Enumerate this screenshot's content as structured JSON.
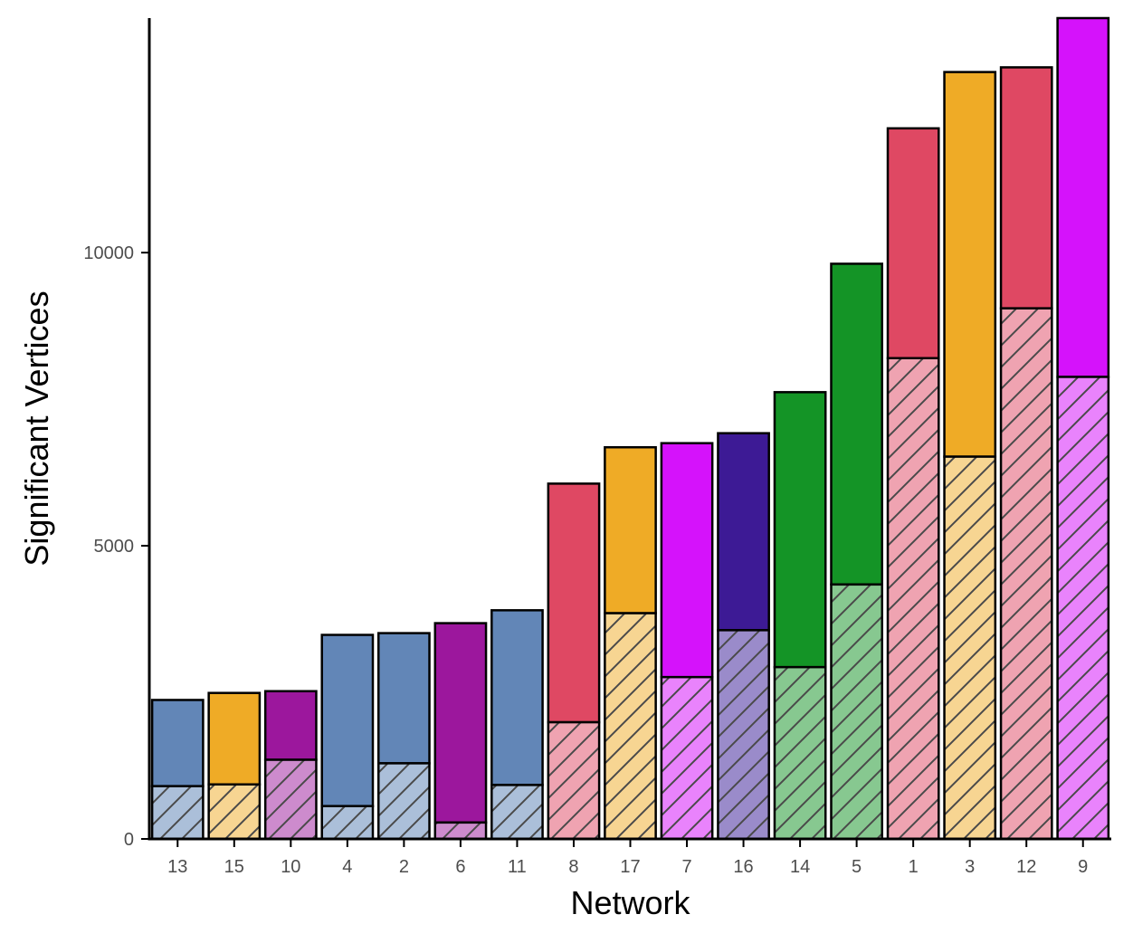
{
  "chart_data": {
    "type": "bar",
    "stacked": true,
    "title": "",
    "xlabel": "Network",
    "ylabel": "Significant Vertices",
    "ylim": [
      0,
      14000
    ],
    "yticks": [
      0,
      5000,
      10000
    ],
    "grid": false,
    "legend": "none",
    "categories": [
      "13",
      "15",
      "10",
      "4",
      "2",
      "6",
      "11",
      "8",
      "17",
      "7",
      "16",
      "14",
      "5",
      "1",
      "3",
      "12",
      "9"
    ],
    "totals": [
      2370,
      2490,
      2520,
      3480,
      3510,
      3680,
      3900,
      6060,
      6680,
      6750,
      6920,
      7620,
      9810,
      12120,
      13080,
      13160,
      14000
    ],
    "hatched_values": [
      900,
      930,
      1350,
      560,
      1290,
      280,
      920,
      1990,
      3850,
      2760,
      3560,
      2930,
      4340,
      8200,
      6520,
      9050,
      7880
    ],
    "bar_colors": [
      "#6286b7",
      "#efab26",
      "#9c179d",
      "#6286b7",
      "#6286b7",
      "#9c179d",
      "#6286b7",
      "#df4863",
      "#efab26",
      "#d512fb",
      "#3d1a95",
      "#149426",
      "#149426",
      "#df4863",
      "#efab26",
      "#df4863",
      "#d512fb"
    ],
    "hatched_colors": [
      "#abbfd9",
      "#f7d592",
      "#cd8bcd",
      "#abbfd9",
      "#abbfd9",
      "#cd8bcd",
      "#abbfd9",
      "#efa3b1",
      "#f7d592",
      "#e983fc",
      "#9a8bca",
      "#87c890",
      "#87c890",
      "#efa3b1",
      "#f7d592",
      "#efa3b1",
      "#e983fc"
    ]
  }
}
